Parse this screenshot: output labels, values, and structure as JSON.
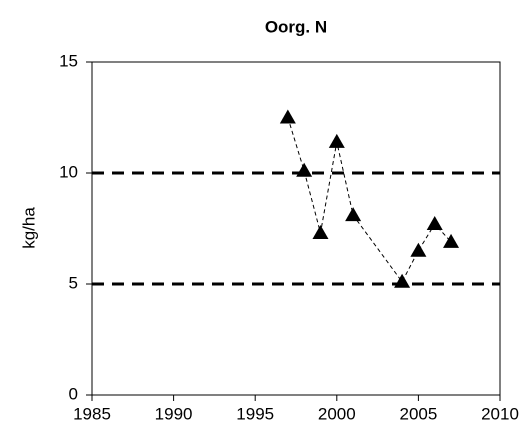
{
  "chart_data": {
    "type": "line",
    "title": "Oorg. N",
    "y_label": "kg/ha",
    "x": [
      1997,
      1998,
      1999,
      2000,
      2001,
      2004,
      2005,
      2006,
      2007
    ],
    "series": [
      {
        "color": "#000000",
        "values": [
          12.5,
          10.1,
          7.3,
          11.4,
          8.1,
          5.1,
          6.5,
          7.7,
          6.9
        ]
      }
    ],
    "reference_lines": [
      10,
      5
    ],
    "xlim": [
      1985,
      2010
    ],
    "xticks": [
      1985,
      1990,
      1995,
      2000,
      2005,
      2010
    ],
    "ylim": [
      0,
      15
    ],
    "yticks": [
      0,
      5,
      10,
      15
    ]
  }
}
